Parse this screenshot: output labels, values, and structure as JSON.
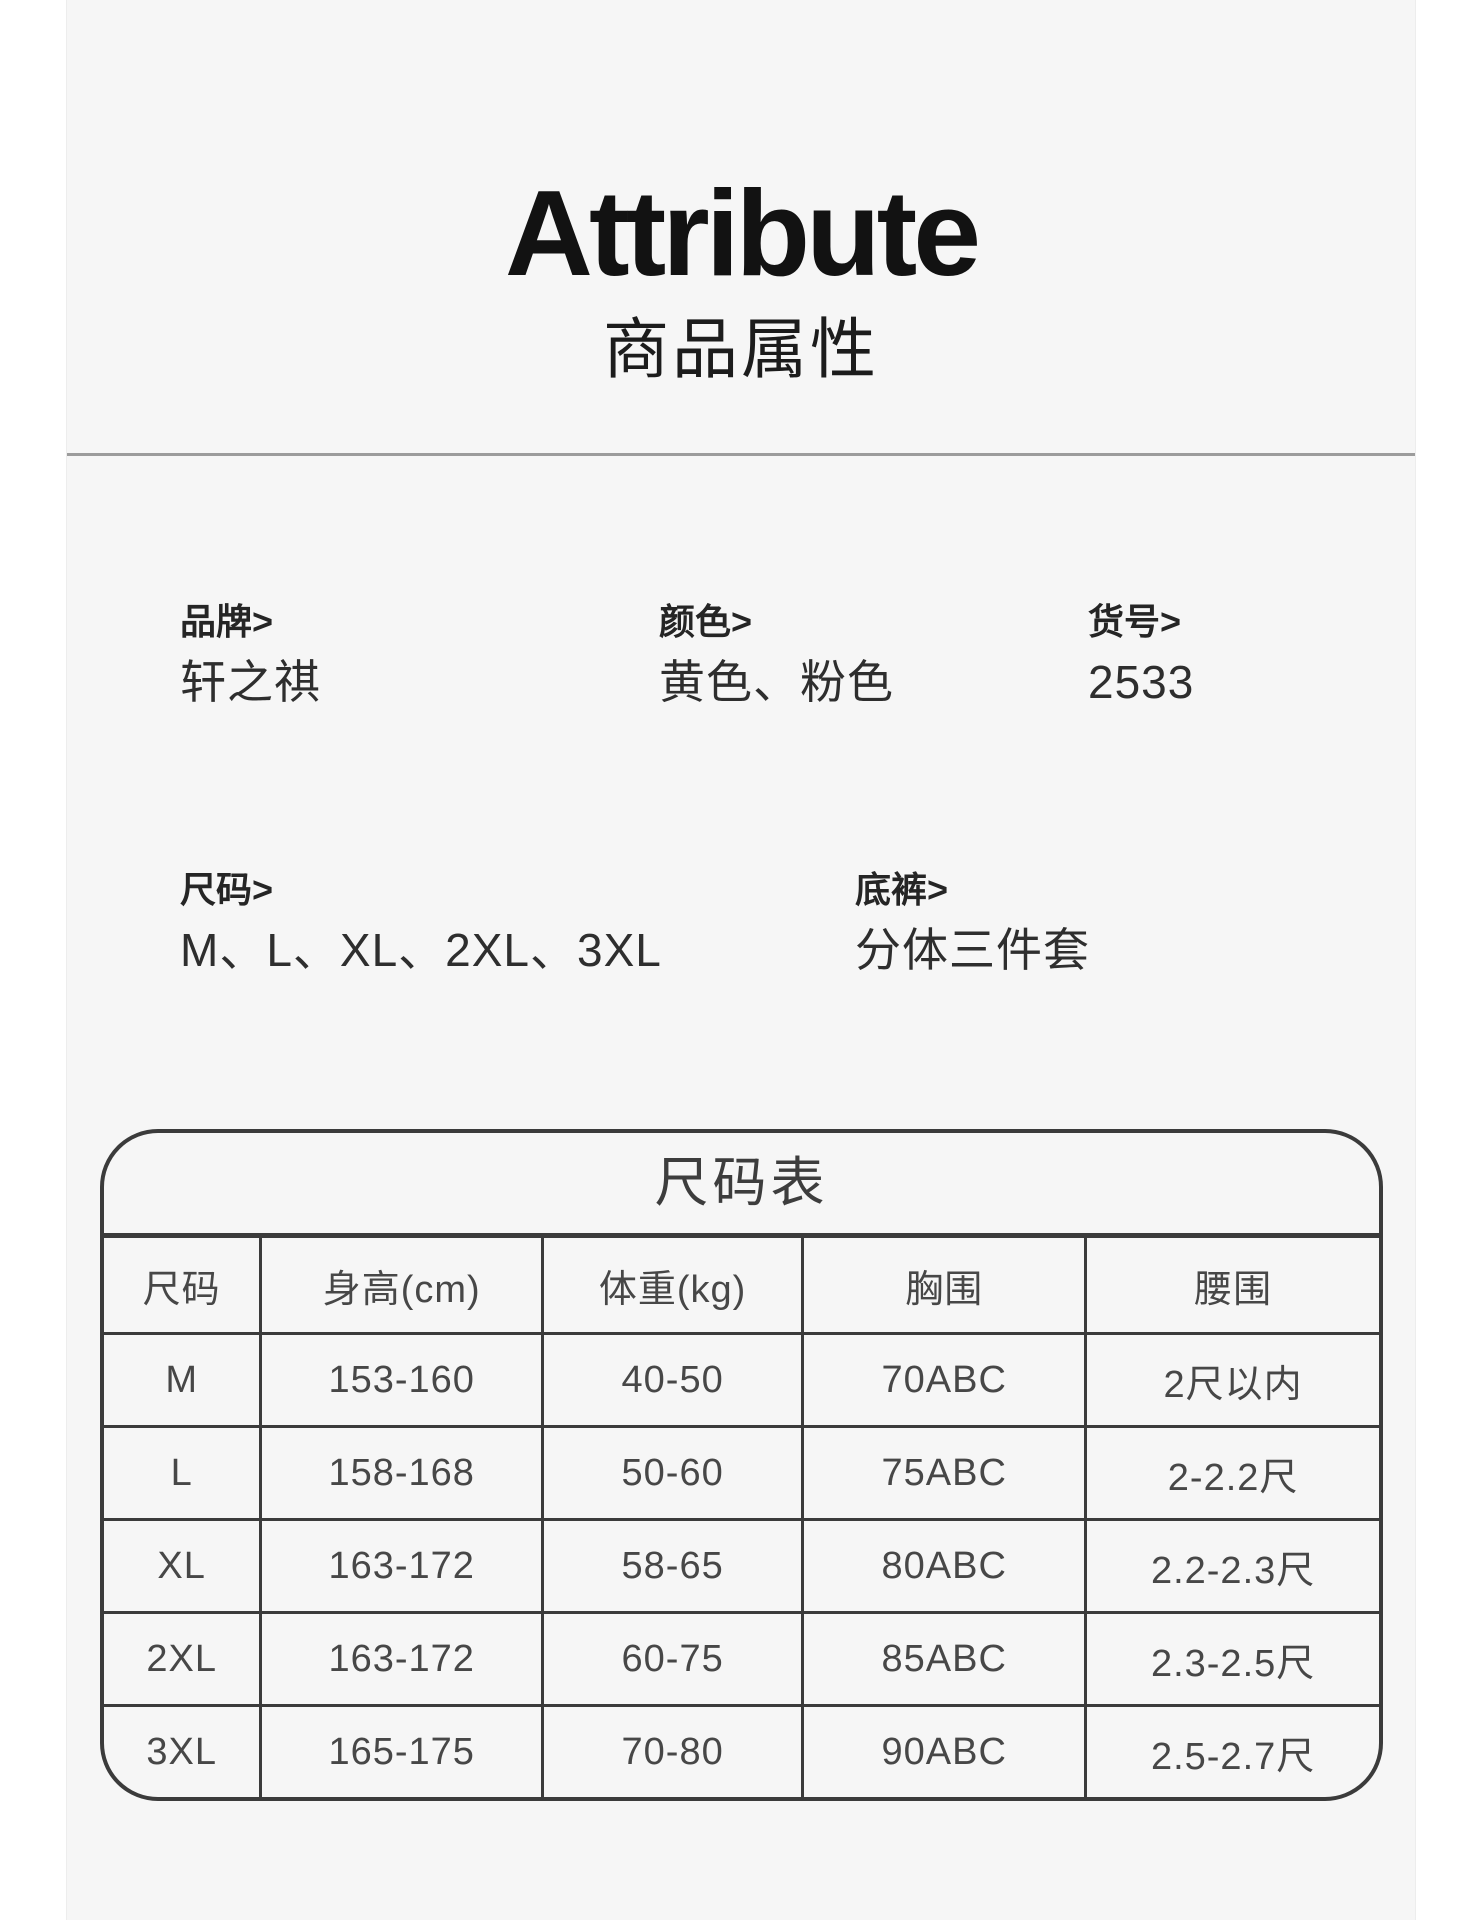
{
  "page": {
    "title": "Attribute",
    "subtitle": "商品属性"
  },
  "attributes": [
    {
      "label": "品牌>",
      "value": "轩之祺"
    },
    {
      "label": "颜色>",
      "value": "黄色、粉色"
    },
    {
      "label": "货号>",
      "value": "2533"
    },
    {
      "label": "尺码>",
      "value": "M、L、XL、2XL、3XL"
    },
    {
      "label": "底裤>",
      "value": "分体三件套"
    }
  ],
  "size_table": {
    "title": "尺码表",
    "headers": [
      "尺码",
      "身高(cm)",
      "体重(kg)",
      "胸围",
      "腰围"
    ],
    "rows": [
      [
        "M",
        "153-160",
        "40-50",
        "70ABC",
        "2尺以内"
      ],
      [
        "L",
        "158-168",
        "50-60",
        "75ABC",
        "2-2.2尺"
      ],
      [
        "XL",
        "163-172",
        "58-65",
        "80ABC",
        "2.2-2.3尺"
      ],
      [
        "2XL",
        "163-172",
        "60-75",
        "85ABC",
        "2.3-2.5尺"
      ],
      [
        "3XL",
        "165-175",
        "70-80",
        "90ABC",
        "2.5-2.7尺"
      ]
    ]
  },
  "colors": {
    "panel_bg": "#f6f6f6",
    "page_bg": "#ffffff",
    "table_border": "#3b3b3b",
    "divider": "#9c9c9c",
    "title_text": "#121212",
    "body_text": "#2e2e2e",
    "table_text": "#474747"
  }
}
